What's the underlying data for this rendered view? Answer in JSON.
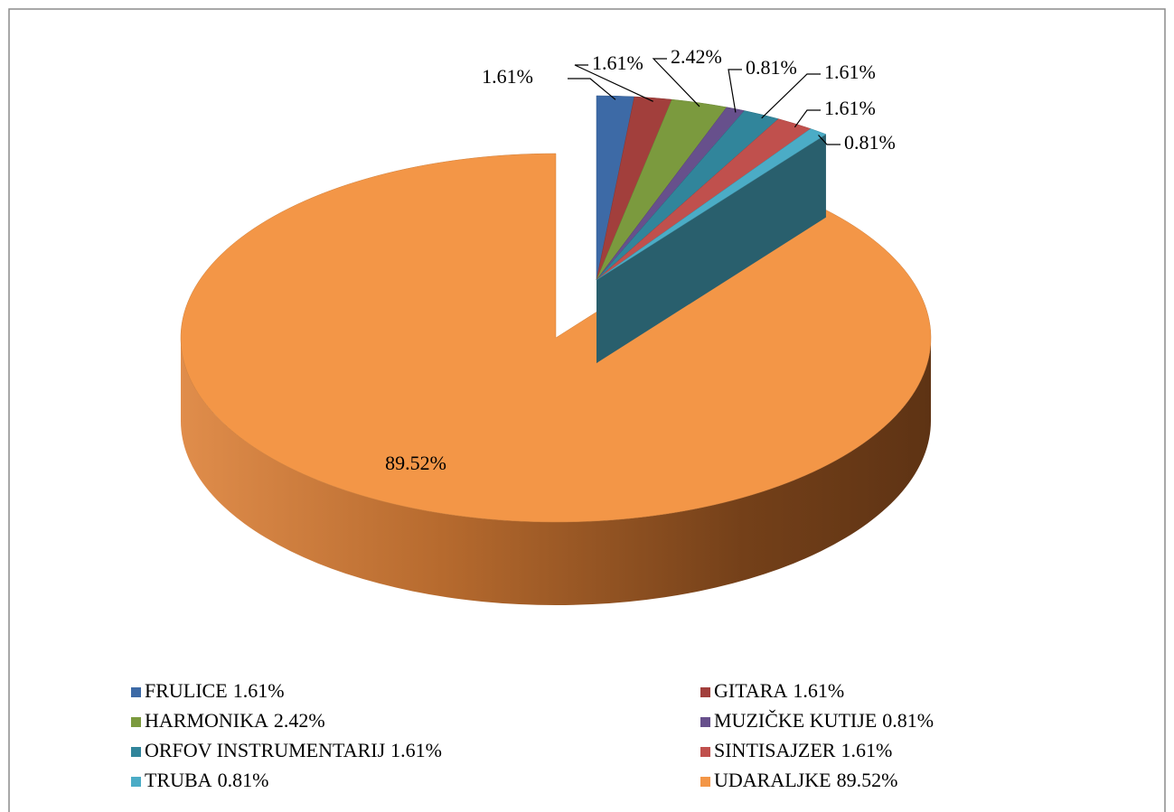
{
  "chart_data": {
    "type": "pie",
    "categories": [
      "FRULICE",
      "GITARA",
      "HARMONIKA",
      "MUZIČKE KUTIJE",
      "ORFOV INSTRUMENTARIJ",
      "SINTISAJZER",
      "TRUBA",
      "UDARALJKE"
    ],
    "values": [
      1.61,
      1.61,
      2.42,
      0.81,
      1.61,
      1.61,
      0.81,
      89.52
    ],
    "value_labels": [
      "1.61%",
      "1.61%",
      "2.42%",
      "0.81%",
      "1.61%",
      "1.61%",
      "0.81%",
      "89.52%"
    ],
    "colors": [
      "#3d6aa6",
      "#a23f3c",
      "#7b9a3e",
      "#67508c",
      "#31859b",
      "#c0504d",
      "#4bacc6",
      "#f39647"
    ],
    "legend": "bottom"
  }
}
